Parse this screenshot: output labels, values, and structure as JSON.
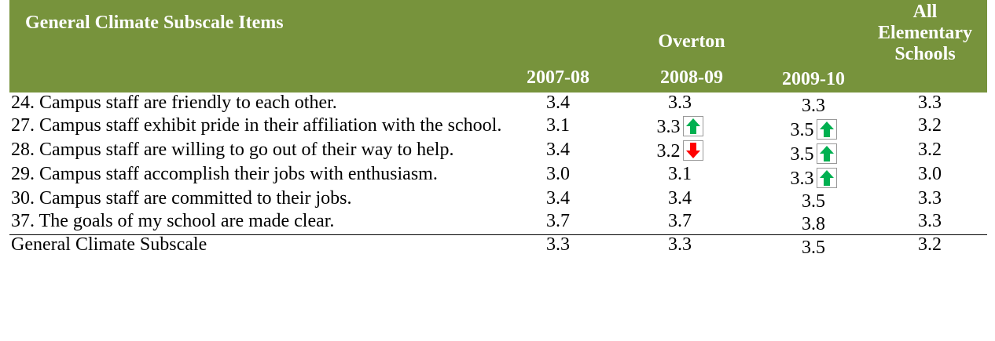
{
  "header": {
    "title": "General Climate Subscale Items",
    "group": "Overton",
    "columns": [
      "2007-08",
      "2008-09",
      "2009-10",
      "All Elementary Schools"
    ]
  },
  "rows": [
    {
      "item": "24. Campus staff are friendly to each other.",
      "values": [
        "3.4",
        "3.3",
        "3.3",
        "3.3"
      ],
      "arrows": [
        null,
        null,
        null,
        null
      ]
    },
    {
      "item": "27. Campus staff exhibit pride in their affiliation with the school.",
      "values": [
        "3.1",
        "3.3",
        "3.5",
        "3.2"
      ],
      "arrows": [
        null,
        "up",
        "up",
        null
      ]
    },
    {
      "item": "28. Campus staff are willing to go out of their way to help.",
      "values": [
        "3.4",
        "3.2",
        "3.5",
        "3.2"
      ],
      "arrows": [
        null,
        "down",
        "up",
        null
      ]
    },
    {
      "item": "29. Campus staff accomplish their jobs with enthusiasm.",
      "values": [
        "3.0",
        "3.1",
        "3.3",
        "3.0"
      ],
      "arrows": [
        null,
        null,
        "up",
        null
      ]
    },
    {
      "item": "30. Campus staff are committed to their jobs.",
      "values": [
        "3.4",
        "3.4",
        "3.5",
        "3.3"
      ],
      "arrows": [
        null,
        null,
        null,
        null
      ]
    },
    {
      "item": "37. The goals of my school are made clear.",
      "values": [
        "3.7",
        "3.7",
        "3.8",
        "3.3"
      ],
      "arrows": [
        null,
        null,
        null,
        null
      ]
    },
    {
      "item": "General Climate Subscale",
      "values": [
        "3.3",
        "3.3",
        "3.5",
        "3.2"
      ],
      "arrows": [
        null,
        null,
        null,
        null
      ],
      "total": true
    }
  ]
}
